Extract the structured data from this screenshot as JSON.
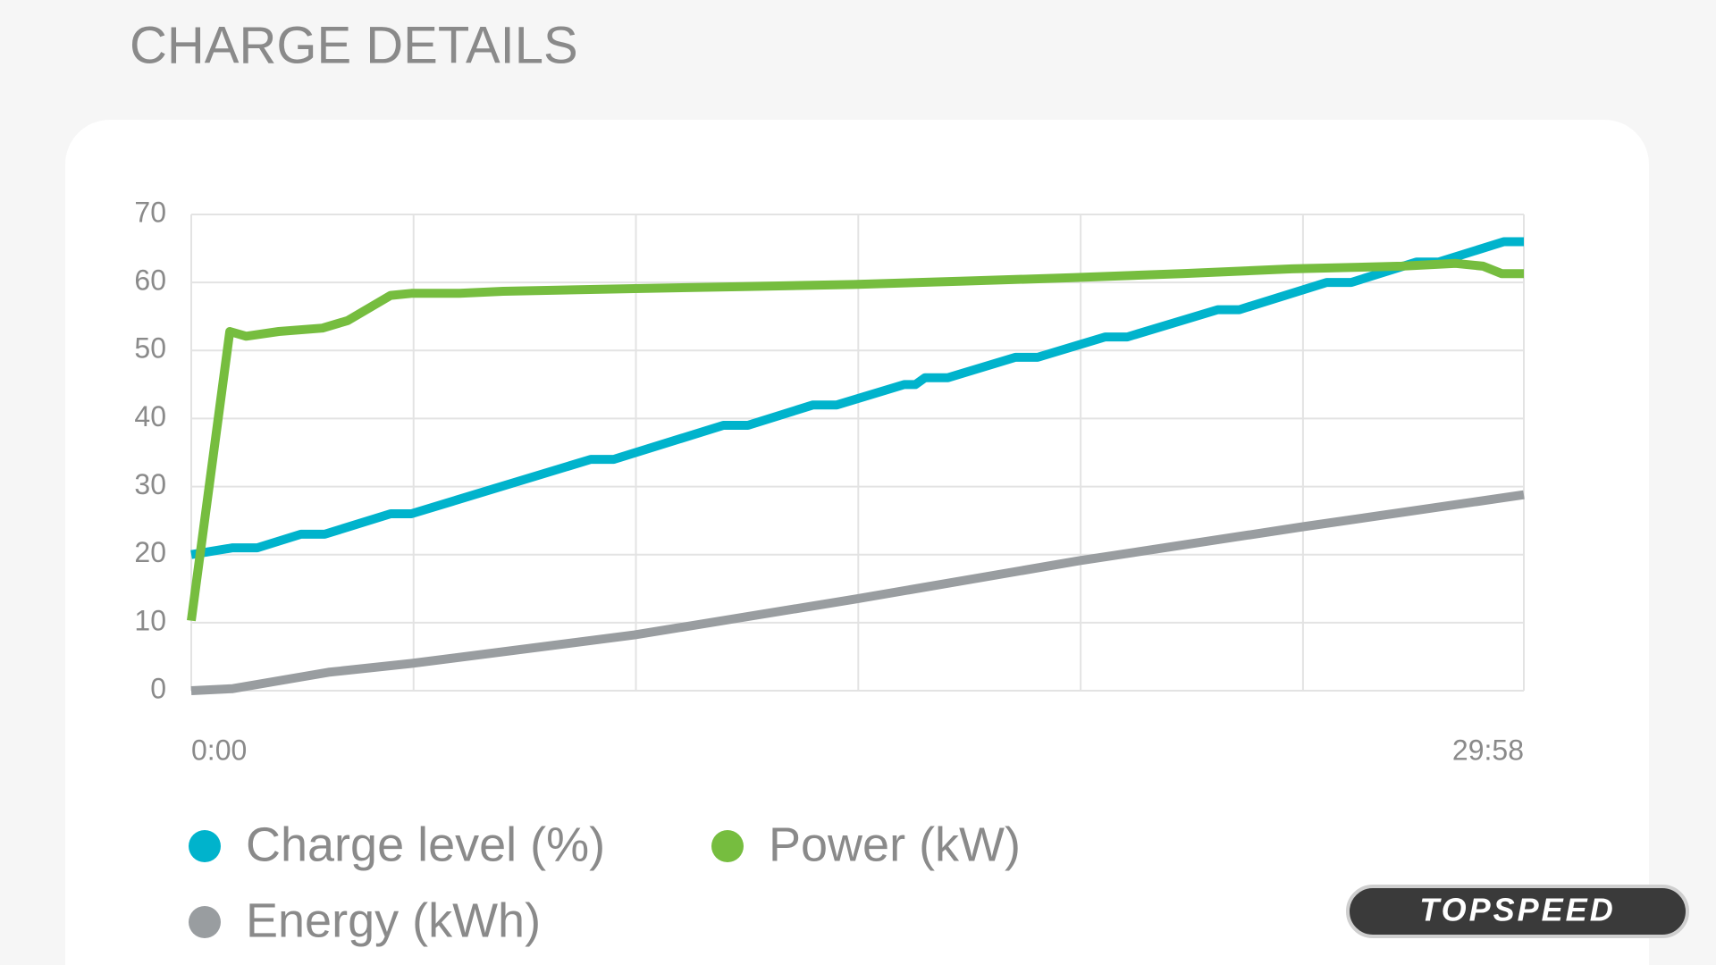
{
  "chart_data": {
    "type": "line",
    "title": "CHARGE DETAILS",
    "watermark": "TOPSPEED",
    "xlim": [
      0,
      1798
    ],
    "xticks": [
      {
        "value": 0,
        "label": "0:00"
      },
      {
        "value": 1798,
        "label": "29:58"
      }
    ],
    "xgrid": [
      300,
      600,
      900,
      1200,
      1500
    ],
    "ylim": [
      0,
      70
    ],
    "yticks": [
      0,
      10,
      20,
      30,
      40,
      50,
      60,
      70
    ],
    "grid": true,
    "series": [
      {
        "name": "Charge level (%)",
        "color": "#00b3cc",
        "x": [
          0,
          56,
          89,
          148,
          180,
          269,
          297,
          539,
          570,
          718,
          751,
          839,
          871,
          962,
          977,
          990,
          1021,
          1112,
          1142,
          1233,
          1263,
          1385,
          1414,
          1532,
          1565,
          1653,
          1683,
          1771,
          1798
        ],
        "values": [
          20,
          21,
          21,
          23,
          23,
          26,
          26,
          34,
          34,
          39,
          39,
          42,
          42,
          45,
          45,
          46,
          46,
          49,
          49,
          52,
          52,
          56,
          56,
          60,
          60,
          63,
          63,
          66,
          66
        ]
      },
      {
        "name": "Power (kW)",
        "color": "#76bd3f",
        "x": [
          0,
          52,
          74,
          118,
          177,
          211,
          269,
          297,
          362,
          421,
          598,
          746,
          894,
          1042,
          1189,
          1337,
          1485,
          1633,
          1706,
          1743,
          1768,
          1798
        ],
        "values": [
          10.3,
          52.8,
          52.1,
          52.8,
          53.3,
          54.4,
          58.1,
          58.4,
          58.4,
          58.7,
          59.1,
          59.4,
          59.7,
          60.2,
          60.7,
          61.3,
          62.0,
          62.4,
          62.8,
          62.4,
          61.3,
          61.3
        ]
      },
      {
        "name": "Energy (kWh)",
        "color": "#999da0",
        "x": [
          0,
          56,
          185,
          297,
          598,
          898,
          1198,
          1500,
          1798
        ],
        "values": [
          0,
          0.3,
          2.7,
          4.0,
          8.2,
          13.5,
          19.1,
          24.1,
          28.8
        ]
      }
    ]
  }
}
